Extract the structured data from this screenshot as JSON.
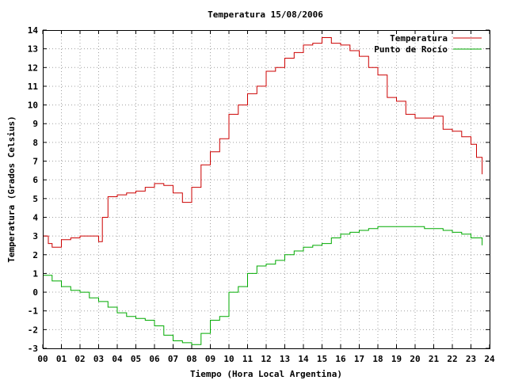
{
  "chart_data": {
    "type": "line",
    "title": "Temperatura 15/08/2006",
    "xlabel": "Tiempo (Hora Local Argentina)",
    "ylabel": "Temperatura (Grados Celsius)",
    "xlim": [
      0,
      24
    ],
    "ylim": [
      -3,
      14
    ],
    "x_tick_labels": [
      "00",
      "01",
      "02",
      "03",
      "04",
      "05",
      "06",
      "07",
      "08",
      "09",
      "10",
      "11",
      "12",
      "13",
      "14",
      "15",
      "16",
      "17",
      "18",
      "19",
      "20",
      "21",
      "22",
      "23",
      "24"
    ],
    "y_tick_labels": [
      "-3",
      "-2",
      "-1",
      "0",
      "1",
      "2",
      "3",
      "4",
      "5",
      "6",
      "7",
      "8",
      "9",
      "10",
      "11",
      "12",
      "13",
      "14"
    ],
    "grid": true,
    "legend_position": "top-right",
    "series": [
      {
        "name": "Temperatura",
        "color": "#cc0000",
        "x": [
          0,
          0.3,
          0.5,
          1.0,
          1.5,
          2.0,
          2.5,
          3.0,
          3.2,
          3.5,
          4.0,
          4.5,
          5.0,
          5.5,
          6.0,
          6.5,
          7.0,
          7.5,
          7.8,
          8.0,
          8.5,
          9.0,
          9.5,
          10.0,
          10.5,
          11.0,
          11.5,
          12.0,
          12.5,
          13.0,
          13.5,
          14.0,
          14.5,
          15.0,
          15.5,
          16.0,
          16.5,
          17.0,
          17.5,
          18.0,
          18.5,
          19.0,
          19.5,
          20.0,
          20.5,
          21.0,
          21.5,
          22.0,
          22.5,
          23.0,
          23.3,
          23.6
        ],
        "values": [
          3.0,
          2.6,
          2.4,
          2.8,
          2.9,
          3.0,
          3.0,
          2.7,
          4.0,
          5.1,
          5.2,
          5.3,
          5.4,
          5.6,
          5.8,
          5.7,
          5.3,
          4.8,
          4.8,
          5.6,
          6.8,
          7.5,
          8.2,
          9.5,
          10.0,
          10.6,
          11.0,
          11.8,
          12.0,
          12.5,
          12.8,
          13.2,
          13.3,
          13.6,
          13.3,
          13.2,
          12.9,
          12.6,
          12.0,
          11.6,
          10.4,
          10.2,
          9.5,
          9.3,
          9.3,
          9.4,
          8.7,
          8.6,
          8.3,
          7.9,
          7.2,
          6.3
        ]
      },
      {
        "name": "Punto de Rocío",
        "color": "#00aa00",
        "x": [
          0,
          0.5,
          1.0,
          1.5,
          2.0,
          2.5,
          3.0,
          3.5,
          4.0,
          4.5,
          5.0,
          5.5,
          6.0,
          6.5,
          7.0,
          7.5,
          8.0,
          8.5,
          9.0,
          9.5,
          10.0,
          10.5,
          11.0,
          11.5,
          12.0,
          12.5,
          13.0,
          13.5,
          14.0,
          14.5,
          15.0,
          15.5,
          16.0,
          16.5,
          17.0,
          17.5,
          18.0,
          18.5,
          19.0,
          19.5,
          20.0,
          20.5,
          21.0,
          21.5,
          22.0,
          22.5,
          23.0,
          23.6
        ],
        "values": [
          0.9,
          0.6,
          0.3,
          0.1,
          0.0,
          -0.3,
          -0.5,
          -0.8,
          -1.1,
          -1.3,
          -1.4,
          -1.5,
          -1.8,
          -2.3,
          -2.6,
          -2.7,
          -2.8,
          -2.2,
          -1.5,
          -1.3,
          0.0,
          0.3,
          1.0,
          1.4,
          1.5,
          1.7,
          2.0,
          2.2,
          2.4,
          2.5,
          2.6,
          2.9,
          3.1,
          3.2,
          3.3,
          3.4,
          3.5,
          3.5,
          3.5,
          3.5,
          3.5,
          3.4,
          3.4,
          3.3,
          3.2,
          3.1,
          2.9,
          2.5
        ]
      }
    ]
  }
}
